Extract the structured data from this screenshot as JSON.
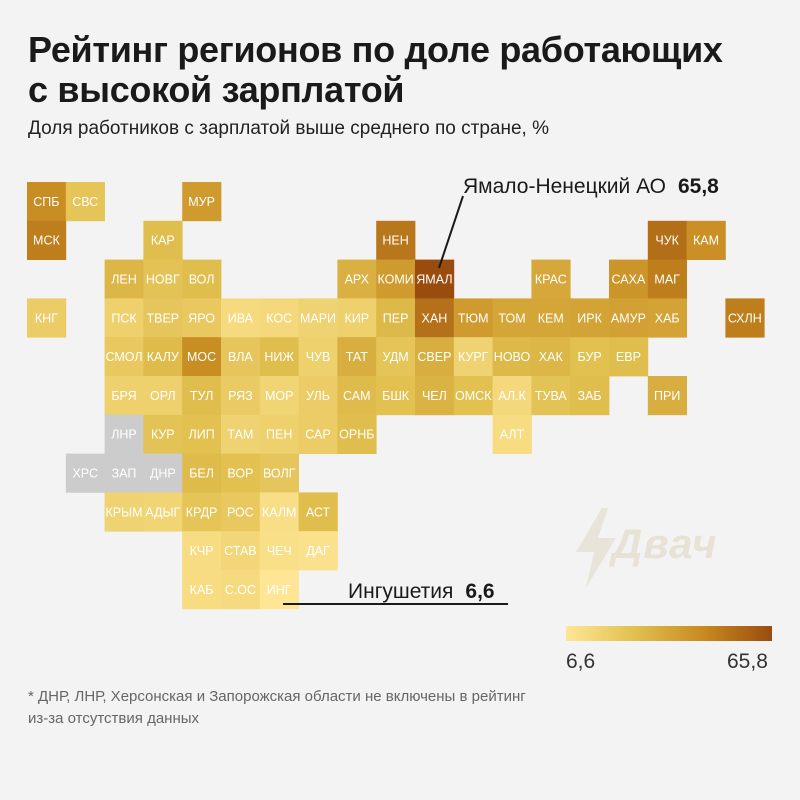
{
  "title_line1": "Рейтинг регионов по доле работающих",
  "title_line2": "с высокой зарплатой",
  "subtitle": "Доля работников с зарплатой выше среднего по стране, %",
  "annotations": {
    "max": {
      "label": "Ямало-Ненецкий АО",
      "value": "65,8"
    },
    "min": {
      "label": "Ингушетия",
      "value": "6,6"
    }
  },
  "legend": {
    "min_label": "6,6",
    "max_label": "65,8"
  },
  "footnote_line1": "* ДНР, ЛНР, Херсонская и Запорожская области не включены в рейтинг",
  "footnote_line2": "из-за отсутствия данных",
  "watermark": "Двач",
  "colors": {
    "background": "#f3f3f3",
    "nodata": "#cccccc",
    "low": "#ffe695",
    "mid": "#e1c050",
    "high": "#c78a20",
    "top": "#9a4c0e"
  },
  "chart_data": {
    "type": "heatmap",
    "title": "Рейтинг регионов по доле работающих с высокой зарплатой",
    "subtitle": "Доля работников с зарплатой выше среднего по стране, %",
    "value_range": [
      6.6,
      65.8
    ],
    "grid": {
      "columns": 19,
      "rows": 12
    },
    "tiles": [
      {
        "label": "СПБ",
        "col": 0,
        "row": 0,
        "value": 45
      },
      {
        "label": "СВС",
        "col": 1,
        "row": 0,
        "value": 24
      },
      {
        "label": "МУР",
        "col": 4,
        "row": 0,
        "value": 40
      },
      {
        "label": "МСК",
        "col": 0,
        "row": 1,
        "value": 50
      },
      {
        "label": "КАР",
        "col": 3,
        "row": 1,
        "value": 27
      },
      {
        "label": "НЕН",
        "col": 9,
        "row": 1,
        "value": 52
      },
      {
        "label": "ЧУК",
        "col": 16,
        "row": 1,
        "value": 55
      },
      {
        "label": "КАМ",
        "col": 17,
        "row": 1,
        "value": 44
      },
      {
        "label": "ЛЕН",
        "col": 2,
        "row": 2,
        "value": 30
      },
      {
        "label": "НОВГ",
        "col": 3,
        "row": 2,
        "value": 25
      },
      {
        "label": "ВОЛ",
        "col": 4,
        "row": 2,
        "value": 27
      },
      {
        "label": "АРХ",
        "col": 8,
        "row": 2,
        "value": 32
      },
      {
        "label": "КОМИ",
        "col": 9,
        "row": 2,
        "value": 40
      },
      {
        "label": "ЯМАЛ",
        "col": 10,
        "row": 2,
        "value": 65.8
      },
      {
        "label": "КРАС",
        "col": 13,
        "row": 2,
        "value": 35
      },
      {
        "label": "САХА",
        "col": 15,
        "row": 2,
        "value": 42
      },
      {
        "label": "МАГ",
        "col": 16,
        "row": 2,
        "value": 50
      },
      {
        "label": "КНГ",
        "col": 0,
        "row": 3,
        "value": 20
      },
      {
        "label": "ПСК",
        "col": 2,
        "row": 3,
        "value": 18
      },
      {
        "label": "ТВЕР",
        "col": 3,
        "row": 3,
        "value": 23
      },
      {
        "label": "ЯРО",
        "col": 4,
        "row": 3,
        "value": 22
      },
      {
        "label": "ИВА",
        "col": 5,
        "row": 3,
        "value": 13
      },
      {
        "label": "КОС",
        "col": 6,
        "row": 3,
        "value": 14
      },
      {
        "label": "МАРИ",
        "col": 7,
        "row": 3,
        "value": 17
      },
      {
        "label": "КИР",
        "col": 8,
        "row": 3,
        "value": 18
      },
      {
        "label": "ПЕР",
        "col": 9,
        "row": 3,
        "value": 29
      },
      {
        "label": "ХАН",
        "col": 10,
        "row": 3,
        "value": 54
      },
      {
        "label": "ТЮМ",
        "col": 11,
        "row": 3,
        "value": 40
      },
      {
        "label": "ТОМ",
        "col": 12,
        "row": 3,
        "value": 36
      },
      {
        "label": "КЕМ",
        "col": 13,
        "row": 3,
        "value": 36
      },
      {
        "label": "ИРК",
        "col": 14,
        "row": 3,
        "value": 37
      },
      {
        "label": "АМУР",
        "col": 15,
        "row": 3,
        "value": 38
      },
      {
        "label": "ХАБ",
        "col": 16,
        "row": 3,
        "value": 37
      },
      {
        "label": "СХЛН",
        "col": 18,
        "row": 3,
        "value": 50
      },
      {
        "label": "СМОЛ",
        "col": 2,
        "row": 4,
        "value": 22
      },
      {
        "label": "КАЛУ",
        "col": 3,
        "row": 4,
        "value": 28
      },
      {
        "label": "МОС",
        "col": 4,
        "row": 4,
        "value": 45
      },
      {
        "label": "ВЛА",
        "col": 5,
        "row": 4,
        "value": 23
      },
      {
        "label": "НИЖ",
        "col": 6,
        "row": 4,
        "value": 27
      },
      {
        "label": "ЧУВ",
        "col": 7,
        "row": 4,
        "value": 18
      },
      {
        "label": "ТАТ",
        "col": 8,
        "row": 4,
        "value": 33
      },
      {
        "label": "УДМ",
        "col": 9,
        "row": 4,
        "value": 24
      },
      {
        "label": "СВЕР",
        "col": 10,
        "row": 4,
        "value": 33
      },
      {
        "label": "КУРГ",
        "col": 11,
        "row": 4,
        "value": 17
      },
      {
        "label": "НОВО",
        "col": 12,
        "row": 4,
        "value": 29
      },
      {
        "label": "ХАК",
        "col": 13,
        "row": 4,
        "value": 30
      },
      {
        "label": "БУР",
        "col": 14,
        "row": 4,
        "value": 26
      },
      {
        "label": "ЕВР",
        "col": 15,
        "row": 4,
        "value": 27
      },
      {
        "label": "БРЯ",
        "col": 2,
        "row": 5,
        "value": 18
      },
      {
        "label": "ОРЛ",
        "col": 3,
        "row": 5,
        "value": 18
      },
      {
        "label": "ТУЛ",
        "col": 4,
        "row": 5,
        "value": 27
      },
      {
        "label": "РЯЗ",
        "col": 5,
        "row": 5,
        "value": 21
      },
      {
        "label": "МОР",
        "col": 6,
        "row": 5,
        "value": 16
      },
      {
        "label": "УЛЬ",
        "col": 7,
        "row": 5,
        "value": 20
      },
      {
        "label": "САМ",
        "col": 8,
        "row": 5,
        "value": 28
      },
      {
        "label": "БШК",
        "col": 9,
        "row": 5,
        "value": 26
      },
      {
        "label": "ЧЕЛ",
        "col": 10,
        "row": 5,
        "value": 31
      },
      {
        "label": "ОМСК",
        "col": 11,
        "row": 5,
        "value": 26
      },
      {
        "label": "АЛ.К",
        "col": 12,
        "row": 5,
        "value": 14
      },
      {
        "label": "ТУВА",
        "col": 13,
        "row": 5,
        "value": 25
      },
      {
        "label": "ЗАБ",
        "col": 14,
        "row": 5,
        "value": 27
      },
      {
        "label": "ПРИ",
        "col": 16,
        "row": 5,
        "value": 33
      },
      {
        "label": "ЛНР",
        "col": 2,
        "row": 6,
        "value": null
      },
      {
        "label": "КУР",
        "col": 3,
        "row": 6,
        "value": 25
      },
      {
        "label": "ЛИП",
        "col": 4,
        "row": 6,
        "value": 26
      },
      {
        "label": "ТАМ",
        "col": 5,
        "row": 6,
        "value": 17
      },
      {
        "label": "ПЕН",
        "col": 6,
        "row": 6,
        "value": 18
      },
      {
        "label": "САР",
        "col": 7,
        "row": 6,
        "value": 20
      },
      {
        "label": "ОРНБ",
        "col": 8,
        "row": 6,
        "value": 27
      },
      {
        "label": "АЛТ",
        "col": 12,
        "row": 6,
        "value": 12
      },
      {
        "label": "ХРС",
        "col": 1,
        "row": 7,
        "value": null
      },
      {
        "label": "ЗАП",
        "col": 2,
        "row": 7,
        "value": null
      },
      {
        "label": "ДНР",
        "col": 3,
        "row": 7,
        "value": null
      },
      {
        "label": "БЕЛ",
        "col": 4,
        "row": 7,
        "value": 28
      },
      {
        "label": "ВОР",
        "col": 5,
        "row": 7,
        "value": 26
      },
      {
        "label": "ВОЛГ",
        "col": 6,
        "row": 7,
        "value": 23
      },
      {
        "label": "КРЫМ",
        "col": 2,
        "row": 8,
        "value": 17
      },
      {
        "label": "АДЫГ",
        "col": 3,
        "row": 8,
        "value": 16
      },
      {
        "label": "КРДР",
        "col": 4,
        "row": 8,
        "value": 24
      },
      {
        "label": "РОС",
        "col": 5,
        "row": 8,
        "value": 22
      },
      {
        "label": "КАЛМ",
        "col": 6,
        "row": 8,
        "value": 11
      },
      {
        "label": "АСТ",
        "col": 7,
        "row": 8,
        "value": 27
      },
      {
        "label": "КЧР",
        "col": 4,
        "row": 9,
        "value": 12
      },
      {
        "label": "СТАВ",
        "col": 5,
        "row": 9,
        "value": 15
      },
      {
        "label": "ЧЕЧ",
        "col": 6,
        "row": 9,
        "value": 10
      },
      {
        "label": "ДАГ",
        "col": 7,
        "row": 9,
        "value": 9
      },
      {
        "label": "КАБ",
        "col": 4,
        "row": 10,
        "value": 12
      },
      {
        "label": "С.ОС",
        "col": 5,
        "row": 10,
        "value": 13
      },
      {
        "label": "ИНГ",
        "col": 6,
        "row": 10,
        "value": 6.6
      }
    ]
  }
}
